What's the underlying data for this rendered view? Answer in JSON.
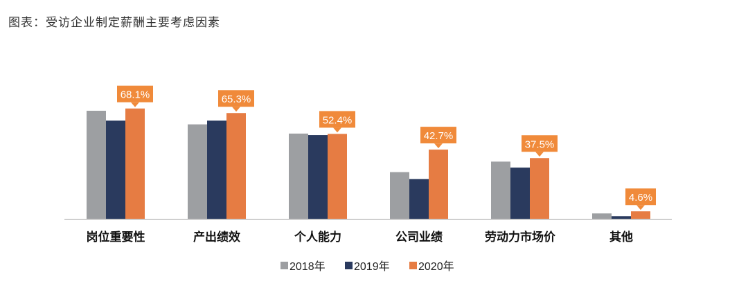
{
  "chart_data": {
    "type": "bar",
    "title": "图表：受访企业制定薪酬主要考虑因素",
    "categories": [
      "岗位重要性",
      "产出绩效",
      "个人能力",
      "公司业绩",
      "劳动力市场价",
      "其他"
    ],
    "series": [
      {
        "name": "2018年",
        "color": "#9d9fa2",
        "values": [
          66.7,
          58.3,
          52.6,
          28.8,
          35.3,
          3.3
        ]
      },
      {
        "name": "2019年",
        "color": "#2a3a5e",
        "values": [
          60.6,
          60.6,
          51.7,
          24.5,
          31.6,
          1.6
        ]
      },
      {
        "name": "2020年",
        "color": "#e67c43",
        "values": [
          68.1,
          65.3,
          52.4,
          42.7,
          37.5,
          4.6
        ]
      }
    ],
    "data_labels": [
      "68.1%",
      "65.3%",
      "52.4%",
      "42.7%",
      "37.5%",
      "4.6%"
    ],
    "label_color": "#f08a3a",
    "xlabel": "",
    "ylabel": "",
    "ylim": [
      0,
      68.1
    ],
    "grid": false,
    "legend": "bottom"
  }
}
